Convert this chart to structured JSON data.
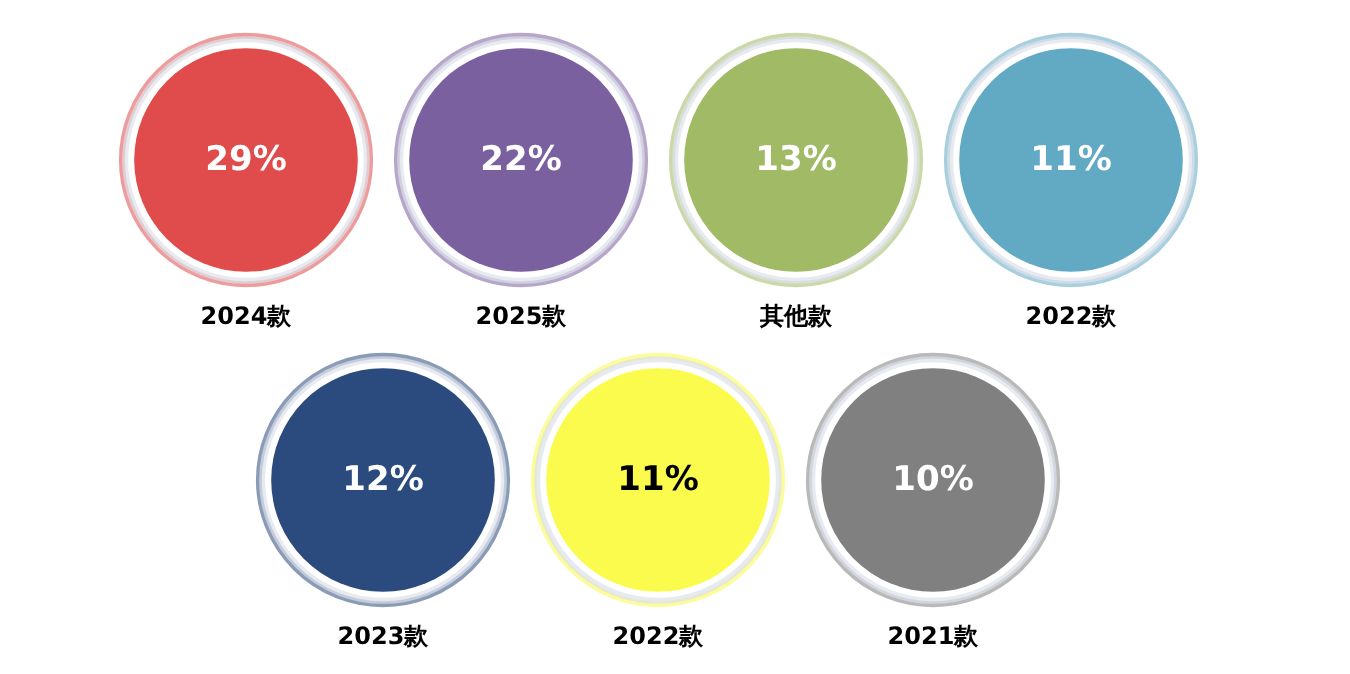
{
  "chart_data": {
    "type": "other",
    "categories": [
      "2024款",
      "2025款",
      "其他款",
      "2022款",
      "2023款",
      "2022款",
      "2021款"
    ],
    "values": [
      29,
      22,
      13,
      11,
      12,
      11,
      10
    ],
    "value_labels": [
      "29%",
      "22%",
      "13%",
      "11%",
      "12%",
      "11%",
      "10%"
    ],
    "colors": [
      "#e04b4b",
      "#7b60a0",
      "#a1ba65",
      "#62a9c4",
      "#2b4a7d",
      "#fbfb4d",
      "#808080"
    ]
  }
}
